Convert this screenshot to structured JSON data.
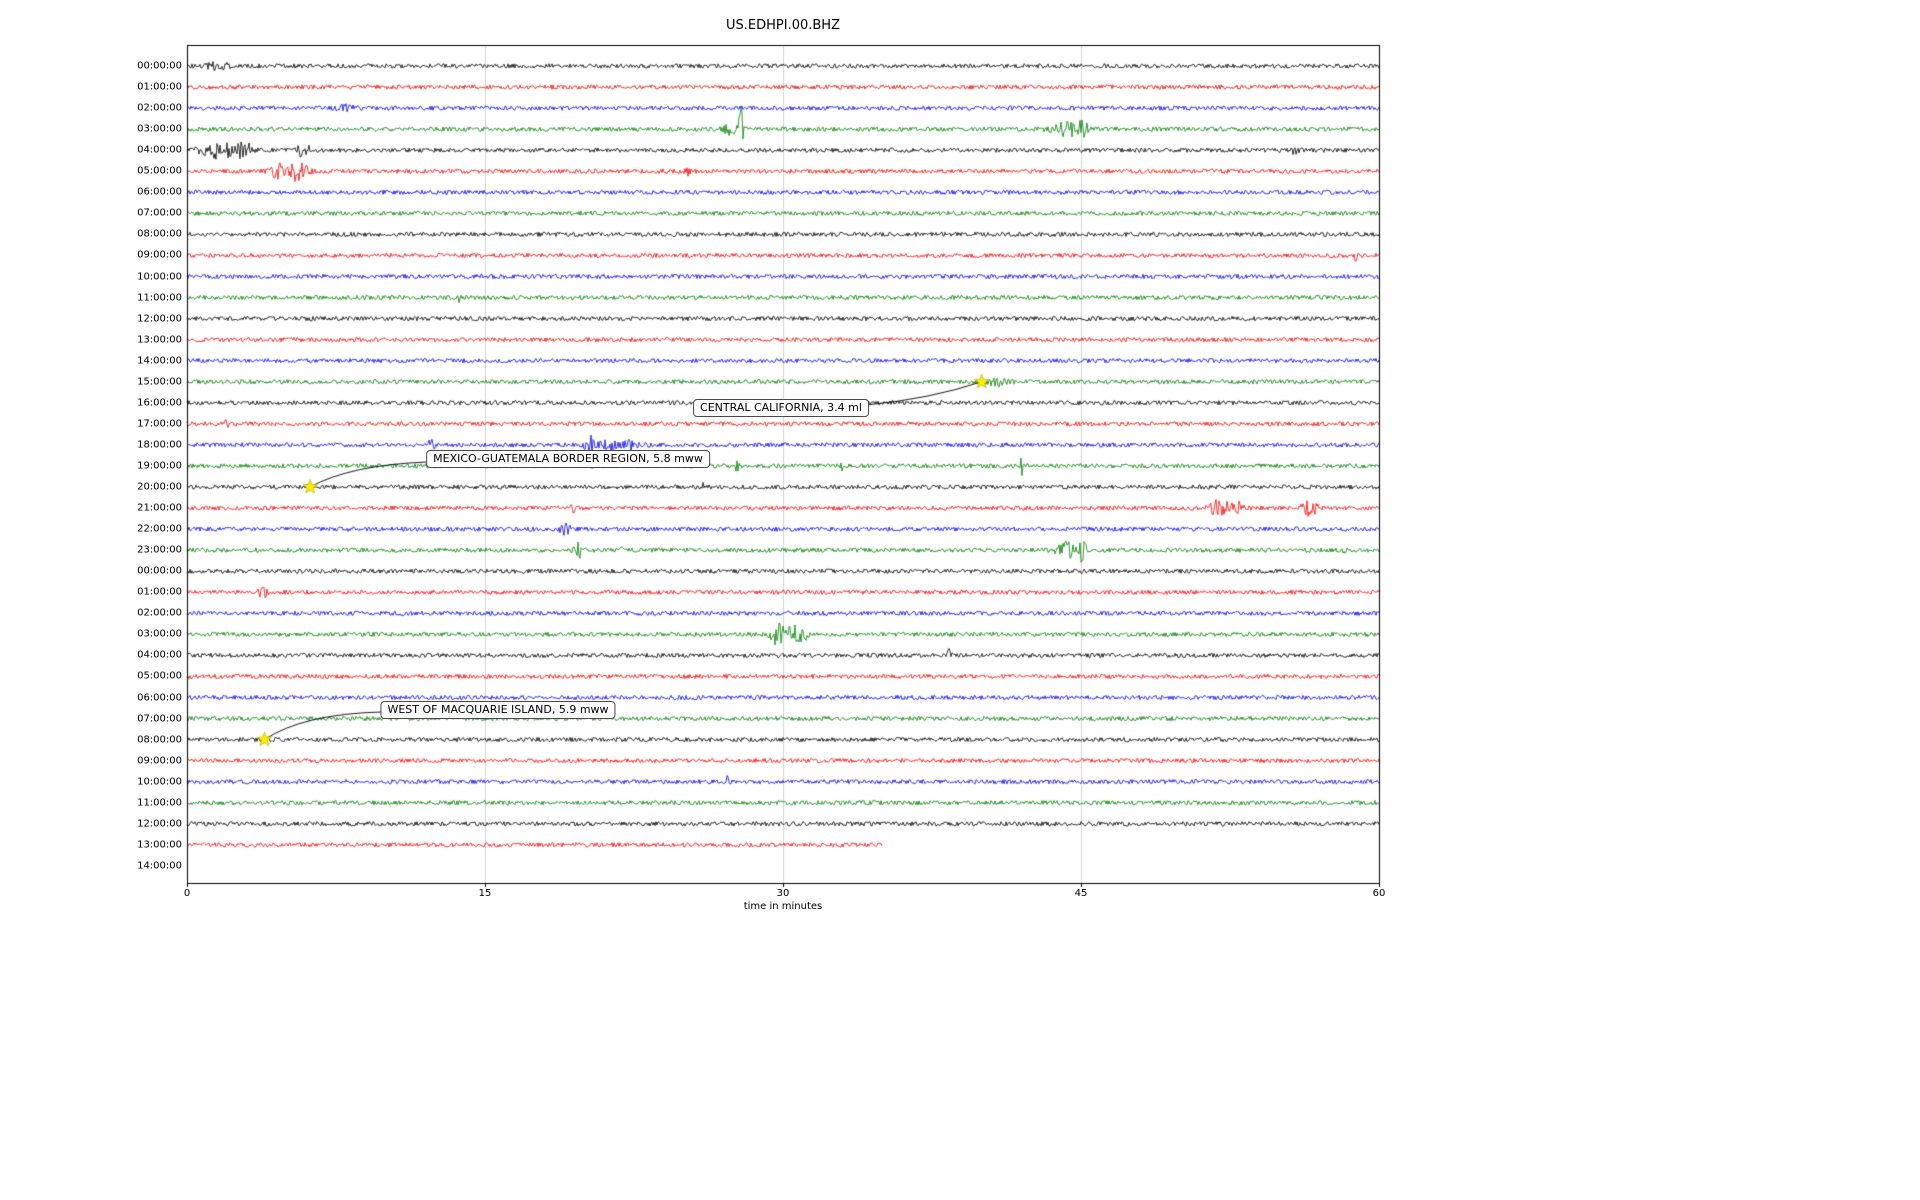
{
  "chart_data": {
    "type": "line",
    "subtype": "seismogram-dayplot",
    "title": "US.EDHPI.00.BHZ",
    "xlabel": "time in minutes",
    "x_range_minutes": [
      0,
      60
    ],
    "grid_vertical_minutes": [
      15,
      30,
      45
    ],
    "x_ticks": [
      {
        "label": "0",
        "value": 0
      },
      {
        "label": "15",
        "value": 15
      },
      {
        "label": "30",
        "value": 30
      },
      {
        "label": "45",
        "value": 45
      },
      {
        "label": "60",
        "value": 60
      }
    ],
    "trace_color_cycle": [
      "#000000",
      "#ff0000",
      "#0000ff",
      "#008000"
    ],
    "rows": [
      {
        "label": "00:00:00",
        "color": "black",
        "duration_min": 60
      },
      {
        "label": "01:00:00",
        "color": "red",
        "duration_min": 60
      },
      {
        "label": "02:00:00",
        "color": "blue",
        "duration_min": 60
      },
      {
        "label": "03:00:00",
        "color": "green",
        "duration_min": 60
      },
      {
        "label": "04:00:00",
        "color": "black",
        "duration_min": 60
      },
      {
        "label": "05:00:00",
        "color": "red",
        "duration_min": 60
      },
      {
        "label": "06:00:00",
        "color": "blue",
        "duration_min": 60
      },
      {
        "label": "07:00:00",
        "color": "green",
        "duration_min": 60
      },
      {
        "label": "08:00:00",
        "color": "black",
        "duration_min": 60
      },
      {
        "label": "09:00:00",
        "color": "red",
        "duration_min": 60
      },
      {
        "label": "10:00:00",
        "color": "blue",
        "duration_min": 60
      },
      {
        "label": "11:00:00",
        "color": "green",
        "duration_min": 60
      },
      {
        "label": "12:00:00",
        "color": "black",
        "duration_min": 60
      },
      {
        "label": "13:00:00",
        "color": "red",
        "duration_min": 60
      },
      {
        "label": "14:00:00",
        "color": "blue",
        "duration_min": 60
      },
      {
        "label": "15:00:00",
        "color": "green",
        "duration_min": 60
      },
      {
        "label": "16:00:00",
        "color": "black",
        "duration_min": 60
      },
      {
        "label": "17:00:00",
        "color": "red",
        "duration_min": 60
      },
      {
        "label": "18:00:00",
        "color": "blue",
        "duration_min": 60
      },
      {
        "label": "19:00:00",
        "color": "green",
        "duration_min": 60
      },
      {
        "label": "20:00:00",
        "color": "black",
        "duration_min": 60
      },
      {
        "label": "21:00:00",
        "color": "red",
        "duration_min": 60
      },
      {
        "label": "22:00:00",
        "color": "blue",
        "duration_min": 60
      },
      {
        "label": "23:00:00",
        "color": "green",
        "duration_min": 60
      },
      {
        "label": "00:00:00",
        "color": "black",
        "duration_min": 60
      },
      {
        "label": "01:00:00",
        "color": "red",
        "duration_min": 60
      },
      {
        "label": "02:00:00",
        "color": "blue",
        "duration_min": 60
      },
      {
        "label": "03:00:00",
        "color": "green",
        "duration_min": 60
      },
      {
        "label": "04:00:00",
        "color": "black",
        "duration_min": 60
      },
      {
        "label": "05:00:00",
        "color": "red",
        "duration_min": 60
      },
      {
        "label": "06:00:00",
        "color": "blue",
        "duration_min": 60
      },
      {
        "label": "07:00:00",
        "color": "green",
        "duration_min": 60
      },
      {
        "label": "08:00:00",
        "color": "black",
        "duration_min": 60
      },
      {
        "label": "09:00:00",
        "color": "red",
        "duration_min": 60
      },
      {
        "label": "10:00:00",
        "color": "blue",
        "duration_min": 60
      },
      {
        "label": "11:00:00",
        "color": "green",
        "duration_min": 60
      },
      {
        "label": "12:00:00",
        "color": "black",
        "duration_min": 60
      },
      {
        "label": "13:00:00",
        "color": "red",
        "duration_min": 35
      },
      {
        "label": "14:00:00",
        "color": null,
        "duration_min": 0
      }
    ],
    "events": [
      {
        "label": "CENTRAL CALIFORNIA, 3.4 ml",
        "row": 15,
        "minute": 40.0,
        "marker": "yellow-star"
      },
      {
        "label": "MEXICO-GUATEMALA BORDER REGION, 5.8 mww",
        "row": 20,
        "minute": 6.2,
        "marker": "yellow-star"
      },
      {
        "label": "WEST OF MACQUARIE ISLAND, 5.9 mww",
        "row": 32,
        "minute": 3.9,
        "marker": "yellow-star"
      }
    ],
    "bursts": [
      {
        "row": 0,
        "m": 1.5,
        "w": 0.6,
        "a": 3
      },
      {
        "row": 2,
        "m": 8.0,
        "w": 0.4,
        "a": 2.5
      },
      {
        "row": 3,
        "m": 27.3,
        "w": 0.3,
        "a": 6
      },
      {
        "row": 3,
        "m": 27.9,
        "w": 0.12,
        "a": 26
      },
      {
        "row": 3,
        "m": 44.3,
        "w": 0.8,
        "a": 6
      },
      {
        "row": 3,
        "m": 45.0,
        "w": 0.3,
        "a": 8
      },
      {
        "row": 4,
        "m": 1.6,
        "w": 0.8,
        "a": 9
      },
      {
        "row": 4,
        "m": 2.9,
        "w": 0.4,
        "a": 7
      },
      {
        "row": 4,
        "m": 5.9,
        "w": 0.3,
        "a": 8
      },
      {
        "row": 4,
        "m": 55.8,
        "w": 0.15,
        "a": 6
      },
      {
        "row": 5,
        "m": 4.6,
        "w": 0.4,
        "a": 7
      },
      {
        "row": 5,
        "m": 5.6,
        "w": 0.5,
        "a": 9
      },
      {
        "row": 5,
        "m": 25.2,
        "w": 0.1,
        "a": 5
      },
      {
        "row": 9,
        "m": 58.8,
        "w": 0.1,
        "a": 4
      },
      {
        "row": 11,
        "m": 13.7,
        "w": 0.08,
        "a": 6
      },
      {
        "row": 15,
        "m": 40.8,
        "w": 0.5,
        "a": 3.5
      },
      {
        "row": 17,
        "m": 2.0,
        "w": 0.08,
        "a": 5
      },
      {
        "row": 18,
        "m": 12.3,
        "w": 0.15,
        "a": 6
      },
      {
        "row": 18,
        "m": 20.3,
        "w": 0.25,
        "a": 9
      },
      {
        "row": 18,
        "m": 21.2,
        "w": 0.4,
        "a": 7
      },
      {
        "row": 18,
        "m": 22.3,
        "w": 0.3,
        "a": 6
      },
      {
        "row": 19,
        "m": 27.7,
        "w": 0.12,
        "a": 5
      },
      {
        "row": 19,
        "m": 33.0,
        "w": 0.1,
        "a": 4
      },
      {
        "row": 19,
        "m": 42.0,
        "w": 0.1,
        "a": 9
      },
      {
        "row": 20,
        "m": 25.9,
        "w": 0.1,
        "a": 6
      },
      {
        "row": 21,
        "m": 19.4,
        "w": 0.1,
        "a": 6
      },
      {
        "row": 21,
        "m": 52.0,
        "w": 0.5,
        "a": 8
      },
      {
        "row": 21,
        "m": 53.0,
        "w": 0.3,
        "a": 6
      },
      {
        "row": 21,
        "m": 56.5,
        "w": 0.4,
        "a": 7
      },
      {
        "row": 22,
        "m": 19.0,
        "w": 0.25,
        "a": 6
      },
      {
        "row": 23,
        "m": 19.7,
        "w": 0.2,
        "a": 7
      },
      {
        "row": 23,
        "m": 21.8,
        "w": 0.1,
        "a": 4
      },
      {
        "row": 23,
        "m": 44.3,
        "w": 0.5,
        "a": 7
      },
      {
        "row": 23,
        "m": 45.1,
        "w": 0.12,
        "a": 22
      },
      {
        "row": 23,
        "m": 58.3,
        "w": 0.1,
        "a": 5
      },
      {
        "row": 25,
        "m": 3.8,
        "w": 0.2,
        "a": 6
      },
      {
        "row": 27,
        "m": 29.7,
        "w": 0.3,
        "a": 10
      },
      {
        "row": 27,
        "m": 30.4,
        "w": 0.35,
        "a": 11
      },
      {
        "row": 27,
        "m": 31.0,
        "w": 0.2,
        "a": 7
      },
      {
        "row": 28,
        "m": 38.4,
        "w": 0.1,
        "a": 8
      },
      {
        "row": 34,
        "m": 27.2,
        "w": 0.1,
        "a": 5
      }
    ]
  }
}
